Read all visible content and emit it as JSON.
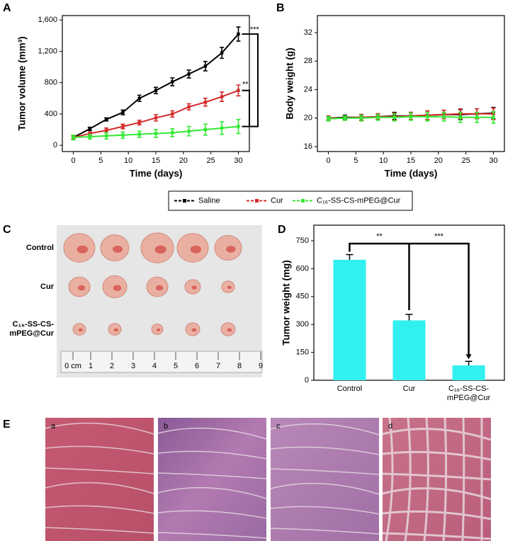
{
  "chart_data": [
    {
      "type": "line",
      "panel": "A",
      "x_label": "Time (days)",
      "y_label": "Tumor volume (mm³)",
      "x": [
        0,
        3,
        6,
        9,
        12,
        15,
        18,
        21,
        24,
        27,
        30
      ],
      "xlim": [
        -2,
        32
      ],
      "xticks": [
        0,
        5,
        10,
        15,
        20,
        25,
        30
      ],
      "ylim": [
        -80,
        1656
      ],
      "yticks": [
        0,
        400,
        800,
        {
          "value": 1200,
          "label": "1,200"
        },
        {
          "value": 1600,
          "label": "1,600"
        }
      ],
      "series": [
        {
          "name": "Saline",
          "color": "#000000",
          "values": [
            100,
            210,
            330,
            420,
            600,
            700,
            810,
            910,
            1010,
            1180,
            1420
          ],
          "errors": [
            20,
            20,
            20,
            30,
            40,
            40,
            50,
            50,
            60,
            70,
            90
          ]
        },
        {
          "name": "Cur",
          "color": "#d42a2a",
          "values": [
            100,
            150,
            190,
            240,
            290,
            350,
            400,
            490,
            550,
            620,
            700
          ],
          "errors": [
            20,
            20,
            30,
            30,
            30,
            40,
            40,
            40,
            50,
            60,
            70
          ]
        },
        {
          "name": "C₁₆-SS-CS-mPEG@Cur",
          "color": "#33e833",
          "values": [
            100,
            110,
            120,
            130,
            140,
            150,
            160,
            180,
            200,
            220,
            240
          ],
          "errors": [
            30,
            30,
            40,
            40,
            40,
            50,
            50,
            60,
            70,
            80,
            90
          ]
        }
      ],
      "annotations": [
        "***",
        "**"
      ]
    },
    {
      "type": "line",
      "panel": "B",
      "x_label": "Time (days)",
      "y_label": "Body weight (g)",
      "x": [
        0,
        3,
        6,
        9,
        12,
        15,
        18,
        21,
        24,
        27,
        30
      ],
      "xlim": [
        -2,
        32
      ],
      "xticks": [
        0,
        5,
        10,
        15,
        20,
        25,
        30
      ],
      "ylim": [
        15.3,
        34.4
      ],
      "yticks": [
        16,
        20,
        24,
        28,
        32
      ],
      "series": [
        {
          "color": "#000000",
          "values": [
            20,
            20.1,
            20.1,
            20.2,
            20.3,
            20.3,
            20.4,
            20.5,
            20.5,
            20.6,
            20.7
          ],
          "errors": [
            0.3,
            0.3,
            0.4,
            0.4,
            0.5,
            0.5,
            0.6,
            0.6,
            0.7,
            0.7,
            0.8
          ]
        },
        {
          "color": "#d42a2a",
          "values": [
            20,
            20,
            20.1,
            20.2,
            20.2,
            20.3,
            20.4,
            20.5,
            20.6,
            20.6,
            20.6
          ],
          "errors": [
            0.3,
            0.3,
            0.4,
            0.4,
            0.5,
            0.5,
            0.6,
            0.6,
            0.7,
            0.7,
            0.8
          ]
        },
        {
          "color": "#33e833",
          "values": [
            19.9,
            20,
            20,
            20.1,
            20.1,
            20.2,
            20.2,
            20.2,
            20.1,
            20.1,
            20.1
          ],
          "errors": [
            0.3,
            0.3,
            0.4,
            0.4,
            0.5,
            0.5,
            0.6,
            0.6,
            0.7,
            0.7,
            0.8
          ]
        }
      ]
    },
    {
      "type": "bar",
      "panel": "D",
      "y_label": "Tumor weight (mg)",
      "categories": [
        "Control",
        "Cur",
        "C₁₆-SS-CS-\nmPEG@Cur"
      ],
      "values": [
        648,
        322,
        80
      ],
      "errors": [
        28,
        32,
        22
      ],
      "color": "#33f0f0",
      "ylim": [
        0,
        834
      ],
      "yticks": [
        0,
        150,
        300,
        450,
        600,
        750
      ],
      "annotations": [
        "**",
        "***"
      ]
    }
  ],
  "photo": {
    "panel": "C",
    "row_labels": [
      "Control",
      "Cur",
      "C₁₆-SS-CS-\nmPEG@Cur"
    ],
    "ruler_labels": [
      "0 cm",
      "1",
      "2",
      "3",
      "4",
      "5",
      "6",
      "7",
      "8",
      "9"
    ]
  },
  "histology": {
    "panel": "E",
    "labels": [
      "a",
      "b",
      "c",
      "d"
    ]
  }
}
